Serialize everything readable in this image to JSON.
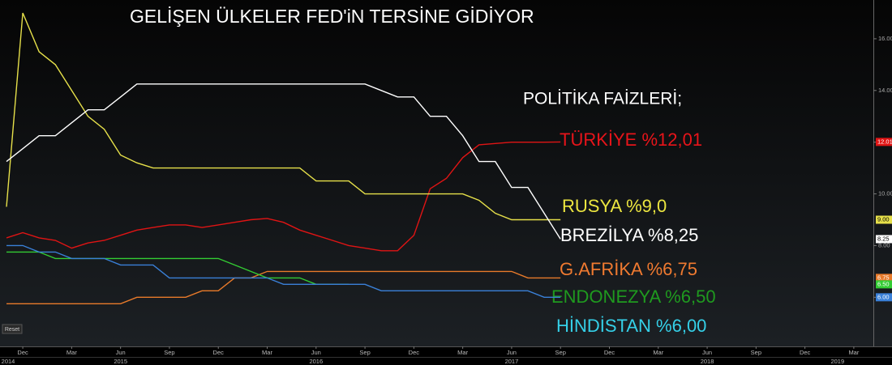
{
  "chart_data": {
    "type": "line",
    "title": "GELİŞEN ÜLKELER FED'iN TERSİNE GİDİYOR",
    "subtitle": "POLİTİKA FAİZLERİ;",
    "reset_button": "Reset",
    "x": [
      "2014-11",
      "2014-12",
      "2015-01",
      "2015-02",
      "2015-03",
      "2015-04",
      "2015-05",
      "2015-06",
      "2015-07",
      "2015-08",
      "2015-09",
      "2015-10",
      "2015-11",
      "2015-12",
      "2016-01",
      "2016-02",
      "2016-03",
      "2016-04",
      "2016-05",
      "2016-06",
      "2016-07",
      "2016-08",
      "2016-09",
      "2016-10",
      "2016-11",
      "2016-12",
      "2017-01",
      "2017-02",
      "2017-03",
      "2017-04",
      "2017-05",
      "2017-06",
      "2017-07",
      "2017-08",
      "2017-09"
    ],
    "xlim": [
      "2014-11",
      "2019-04"
    ],
    "xticks": [
      {
        "value": "2014-12",
        "label": "Dec"
      },
      {
        "value": "2015-03",
        "label": "Mar"
      },
      {
        "value": "2015-06",
        "label": "Jun"
      },
      {
        "value": "2015-09",
        "label": "Sep"
      },
      {
        "value": "2015-12",
        "label": "Dec"
      },
      {
        "value": "2016-03",
        "label": "Mar"
      },
      {
        "value": "2016-06",
        "label": "Jun"
      },
      {
        "value": "2016-09",
        "label": "Sep"
      },
      {
        "value": "2016-12",
        "label": "Dec"
      },
      {
        "value": "2017-03",
        "label": "Mar"
      },
      {
        "value": "2017-06",
        "label": "Jun"
      },
      {
        "value": "2017-09",
        "label": "Sep"
      },
      {
        "value": "2017-12",
        "label": "Dec"
      },
      {
        "value": "2018-03",
        "label": "Mar"
      },
      {
        "value": "2018-06",
        "label": "Jun"
      },
      {
        "value": "2018-09",
        "label": "Sep"
      },
      {
        "value": "2018-12",
        "label": "Dec"
      },
      {
        "value": "2019-03",
        "label": "Mar"
      }
    ],
    "year_ticks": [
      {
        "value": "2014-11",
        "label": "2014"
      },
      {
        "value": "2015-06",
        "label": "2015"
      },
      {
        "value": "2016-06",
        "label": "2016"
      },
      {
        "value": "2017-06",
        "label": "2017"
      },
      {
        "value": "2018-06",
        "label": "2018"
      },
      {
        "value": "2019-02",
        "label": "2019"
      }
    ],
    "ylim": [
      4.1,
      17.5
    ],
    "yticks": [
      {
        "value": 6,
        "label": "6.00"
      },
      {
        "value": 8,
        "label": "8.00"
      },
      {
        "value": 10,
        "label": "10.00"
      },
      {
        "value": 12,
        "label": "12.00"
      },
      {
        "value": 14,
        "label": "14.00"
      },
      {
        "value": 16,
        "label": "16.00"
      }
    ],
    "grid": false,
    "series": [
      {
        "name": "TÜRKİYE %12,01",
        "color": "#e01414",
        "label_color": "#e8141a",
        "end_label": "12.01",
        "values": [
          8.3,
          8.5,
          8.3,
          8.2,
          7.9,
          8.1,
          8.2,
          8.4,
          8.6,
          8.7,
          8.8,
          8.8,
          8.7,
          8.8,
          8.9,
          9.0,
          9.05,
          8.9,
          8.6,
          8.4,
          8.2,
          8.0,
          7.9,
          7.8,
          7.8,
          8.4,
          10.2,
          10.6,
          11.4,
          11.9,
          11.95,
          12.0,
          12.0,
          12.0,
          12.01
        ]
      },
      {
        "name": "RUSYA %9,0",
        "color": "#e6e04a",
        "label_color": "#ece640",
        "end_label": "9.00",
        "values": [
          9.5,
          17.0,
          15.5,
          15.0,
          14.0,
          13.0,
          12.5,
          11.5,
          11.2,
          11.0,
          11.0,
          11.0,
          11.0,
          11.0,
          11.0,
          11.0,
          11.0,
          11.0,
          11.0,
          10.5,
          10.5,
          10.5,
          10.0,
          10.0,
          10.0,
          10.0,
          10.0,
          10.0,
          10.0,
          9.75,
          9.25,
          9.0,
          9.0,
          9.0,
          9.0
        ]
      },
      {
        "name": "BREZİLYA %8,25",
        "color": "#ffffff",
        "label_color": "#ffffff",
        "end_label": "8.25",
        "values": [
          11.25,
          11.75,
          12.25,
          12.25,
          12.75,
          13.25,
          13.25,
          13.75,
          14.25,
          14.25,
          14.25,
          14.25,
          14.25,
          14.25,
          14.25,
          14.25,
          14.25,
          14.25,
          14.25,
          14.25,
          14.25,
          14.25,
          14.25,
          14.0,
          13.75,
          13.75,
          13.0,
          13.0,
          12.25,
          11.25,
          11.25,
          10.25,
          10.25,
          9.25,
          8.25
        ]
      },
      {
        "name": "G.AFRİKA %6,75",
        "color": "#e87a2a",
        "label_color": "#f07a30",
        "end_label": "6.75",
        "values": [
          5.75,
          5.75,
          5.75,
          5.75,
          5.75,
          5.75,
          5.75,
          5.75,
          6.0,
          6.0,
          6.0,
          6.0,
          6.25,
          6.25,
          6.75,
          6.75,
          7.0,
          7.0,
          7.0,
          7.0,
          7.0,
          7.0,
          7.0,
          7.0,
          7.0,
          7.0,
          7.0,
          7.0,
          7.0,
          7.0,
          7.0,
          7.0,
          6.75,
          6.75,
          6.75
        ]
      },
      {
        "name": "ENDONEZYA %6,50",
        "color": "#33cc33",
        "label_color": "#1f9a1f",
        "end_label": "6.50",
        "values": [
          7.75,
          7.75,
          7.75,
          7.5,
          7.5,
          7.5,
          7.5,
          7.5,
          7.5,
          7.5,
          7.5,
          7.5,
          7.5,
          7.5,
          7.25,
          7.0,
          6.75,
          6.75,
          6.75,
          6.5,
          6.5,
          6.5,
          null,
          null,
          null,
          null,
          null,
          null,
          null,
          null,
          null,
          null,
          null,
          null,
          null
        ]
      },
      {
        "name": "HİNDİSTAN %6,00",
        "color": "#3a80d8",
        "label_color": "#35d0e8",
        "end_label": "6.00",
        "values": [
          8.0,
          8.0,
          7.75,
          7.75,
          7.5,
          7.5,
          7.5,
          7.25,
          7.25,
          7.25,
          6.75,
          6.75,
          6.75,
          6.75,
          6.75,
          6.75,
          6.75,
          6.5,
          6.5,
          6.5,
          6.5,
          6.5,
          6.5,
          6.25,
          6.25,
          6.25,
          6.25,
          6.25,
          6.25,
          6.25,
          6.25,
          6.25,
          6.25,
          6.0,
          6.0
        ]
      }
    ]
  }
}
